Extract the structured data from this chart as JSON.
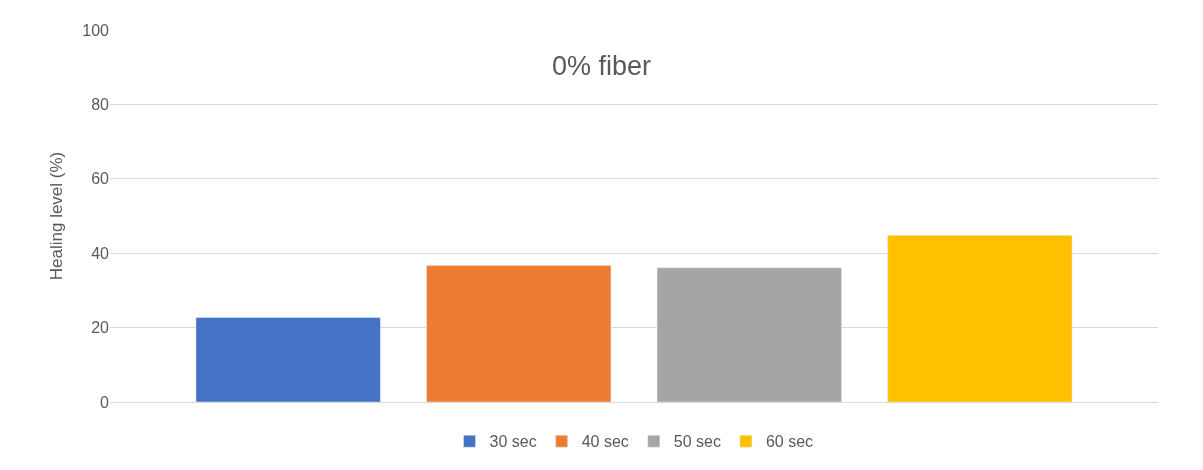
{
  "chart_data": {
    "type": "bar",
    "title": "0% fiber",
    "ylabel": "Healing level (%)",
    "categories": [
      null
    ],
    "series": [
      {
        "name": "30 sec",
        "color": "#4472c4",
        "values": [
          22.7
        ]
      },
      {
        "name": "40 sec",
        "color": "#ed7d31",
        "values": [
          36.7
        ]
      },
      {
        "name": "50 sec",
        "color": "#a5a5a5",
        "values": [
          36.1
        ]
      },
      {
        "name": "60 sec",
        "color": "#ffc000",
        "values": [
          44.8
        ]
      }
    ],
    "ylim": [
      0,
      100
    ],
    "yticks": [
      0,
      20,
      40,
      60,
      80,
      100
    ],
    "grid": "y",
    "legend": "bottom"
  }
}
